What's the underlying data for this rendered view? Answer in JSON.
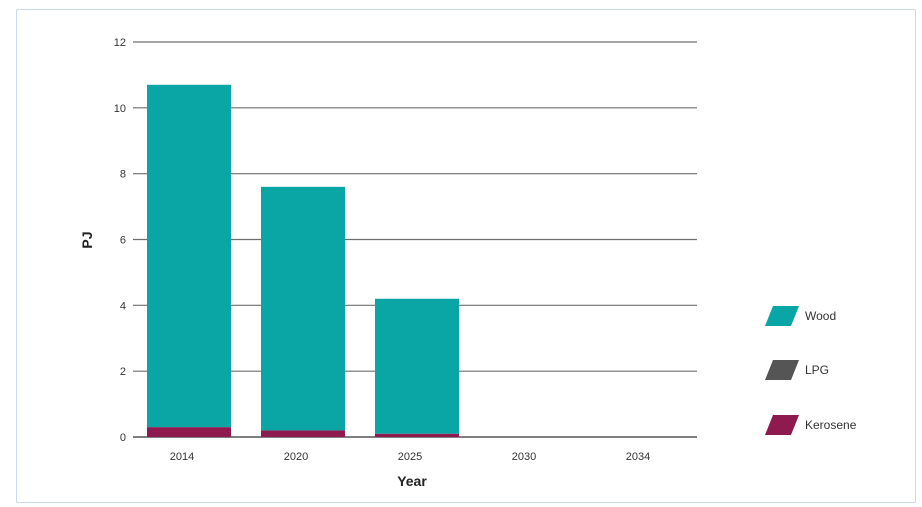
{
  "chart_data": {
    "type": "bar",
    "stacked": true,
    "title": "",
    "xlabel": "Year",
    "ylabel": "PJ",
    "categories": [
      "2014",
      "2020",
      "2025",
      "2030",
      "2034"
    ],
    "ylim": [
      0,
      12
    ],
    "yticks": [
      0,
      2,
      4,
      6,
      8,
      10,
      12
    ],
    "grid": true,
    "legend_position": "right",
    "series": [
      {
        "name": "Kerosene",
        "color": "#8e1a4f",
        "values": [
          0.3,
          0.2,
          0.1,
          0,
          0
        ]
      },
      {
        "name": "LPG",
        "color": "#555555",
        "values": [
          0,
          0,
          0,
          0,
          0
        ]
      },
      {
        "name": "Wood",
        "color": "#0aa5a5",
        "values": [
          10.4,
          7.4,
          4.1,
          0,
          0
        ]
      }
    ]
  },
  "legend": {
    "items": [
      {
        "label": "Wood",
        "color": "#0aa5a5"
      },
      {
        "label": "LPG",
        "color": "#555555"
      },
      {
        "label": "Kerosene",
        "color": "#8e1a4f"
      }
    ]
  }
}
